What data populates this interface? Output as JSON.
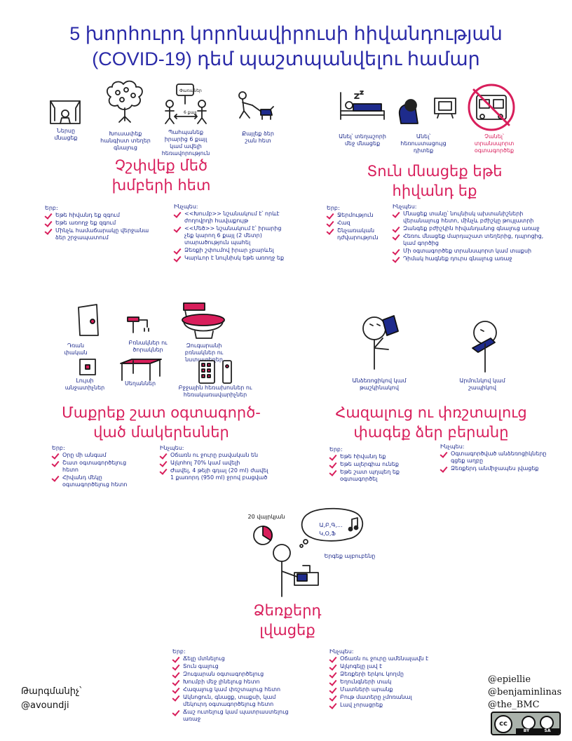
{
  "title": {
    "line1": "5 խորհուրդ կորոնավիրուսի հիվանդության",
    "line2": "(COVID-19) դեմ պաշտպանվելու համար"
  },
  "crowds": {
    "heading1": "Չշփվեք մեծ",
    "heading2": "խմբերի հետ",
    "captions": [
      "Ներսը մնացեք",
      "Խուսափեք հանգիստ տեղեր գնալուց",
      "Պահպանեք իրարից 6 քայլ կամ ավելի հեռավորություն",
      "Քայլեք ձեր շան հետ"
    ],
    "diagram": {
      "sign": "Փառաներ",
      "distance": "6 քայլ"
    },
    "when_label": "Երբ:",
    "when": [
      "Եթե հիվանդ եք զգում",
      "Եթե առողջ եք զգում",
      "Մինչև համաճարակը վերջանա ձեր շրջապատում"
    ],
    "why_label": "Ինչպես:",
    "why": [
      "<<Խումբ>> նշանակում է՝ որևէ ժողովրդի հավաքույթ",
      "<<Մեծ>> նշանակում է՝ իրարից չեք կարող 6 քայլ (2 մետր) տարածություն պահել",
      "Ձեռքի շփումով իրար չբարևել",
      "Կարևոր է նույնիսկ եթե առողջ եք"
    ]
  },
  "stay_home": {
    "heading1": "Տուն մնացեք եթե",
    "heading2": "հիվանդ եք",
    "captions": [
      "Անել՝ տեղաշորի մեջ մնացեք",
      "Անել՝ հեռուստացույց դիտեք",
      "Չանել՝ տրանսպորտ օգտագործեք"
    ],
    "when_label": "Երբ:",
    "when": [
      "Ջերմություն",
      "Հազ",
      "Շնչառական դժվարություն"
    ],
    "why_label": "Ինչպես:",
    "why": [
      "Մնացեք տանը՝ նույնիսկ ախտանիշների վերանալուց հետո, մինչև բժիշկը թույլատրի",
      "Զանգեք բժիշկին հիվանդանոց գնալուց առաջ",
      "Հեռու մնացեք մարդաշատ տեղերից, դպրոցից, կամ գործից",
      "Մի օգտագործեք տրանսպորտ կամ տաքսի",
      "Դիմակ հագնեք դուրս գնալուց առաջ"
    ]
  },
  "clean": {
    "heading1": "Մաքրեք շատ օգտագործ-",
    "heading2": "ված մակերեսներ",
    "captions": [
      "Դռան փական",
      "Բռնակներ ու ծորակներ",
      "Զուգարանի բռնակներ ու նստատեղեր",
      "Լույսի անջատիչներ",
      "Սեղաններ",
      "Բջջային հեռախոսներ ու հեռակառավարիչներ"
    ],
    "when_label": "Երբ:",
    "when": [
      "Օրը մի անգամ",
      "Շատ օգտագործելուց հետո",
      "Հիվանդ մեկը օգտագործելուց հետո"
    ],
    "why_label": "Ինչպես:",
    "why": [
      "Օճառն ու ջուրը բավական են",
      "Ալկոհոլ 70% կամ ավելի",
      "Ժավել, 4 թեյի գդալ (20 ml) ժավել 1 քառորդ (950 ml) ջրով բացված"
    ]
  },
  "mouth": {
    "heading1": "Հազալուց ու փռշտալուց",
    "heading2": "փագեք ձեր բերանը",
    "captions": [
      "Անձեռոցիկով կամ թաշկինակով",
      "Արմունկով կամ շապիկով"
    ],
    "when_label": "Երբ:",
    "when": [
      "Եթե հիվանդ եք",
      "Եթե ալերգիա ունեք",
      "Եթե շատ պղպեղ եք օգտագործել"
    ],
    "why_label": "Ինչպես:",
    "why": [
      "Օգտագործված անձեռոցիկները գցեք աղբը",
      "Ձեռքերդ անմիջապես լվացեք"
    ]
  },
  "wash": {
    "heading1": "Ձեռքերդ",
    "heading2": "լվացեք",
    "timer_label": "20 վայրկյան",
    "song_bubble": "Ա,Բ,Գ,...",
    "song_bubble2": "Կ,Օ,Ֆ",
    "song_caption": "Երգեք այբուբենը",
    "when_label": "Երբ:",
    "when": [
      "Ճելը մտնելուց",
      "Տուն գալուց",
      "Զուգարան օգտագործելուց",
      "Խումբի մեջ լինելուց հետո",
      "Հազալուց կամ փռշտալուց հետո",
      "Ակնոցուն, գնացք, տաքսի, կամ մեկուրդ օգտագործելուց հետո",
      "Ճաշ ուտելուց կամ պատրաստելուց առաջ"
    ],
    "why_label": "Ինչպես:",
    "why": [
      "Օճառն ու ջուրը ամենալավն է",
      "Ալկոգելը լավ է",
      "Ձեռքերի երկու կողմը",
      "Եղունգների տակ",
      "Մատների արանք",
      "Բութ մատերը չմոռանալ",
      "Լավ չորացրեք"
    ]
  },
  "translator": {
    "label": "Թարգմանիչ՝",
    "handle": "@avoundji"
  },
  "credits": [
    "@epiellie",
    "@benjaminlinas",
    "@the_BMC"
  ],
  "license": {
    "cc": "cc",
    "by": "BY",
    "sa": "SA"
  },
  "colors": {
    "title": "#2a2aa8",
    "heading": "#d81e5b",
    "text": "#1e2b8c",
    "check": "#d81e5b"
  }
}
